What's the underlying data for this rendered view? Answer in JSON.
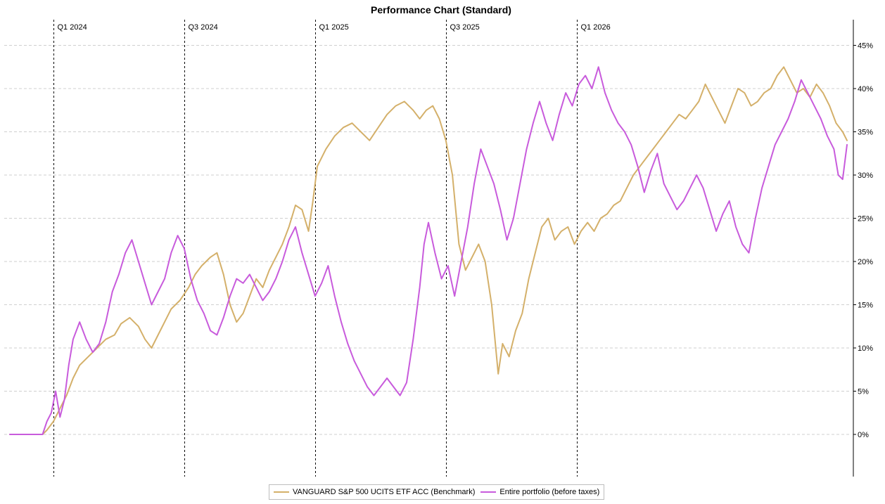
{
  "chart_data": {
    "type": "line",
    "title": "Performance Chart (Standard)",
    "xlabel": "",
    "ylabel": "",
    "x_range": [
      "2023-11",
      "2026-03"
    ],
    "ylim": [
      -5,
      48
    ],
    "y_ticks": [
      0,
      5,
      10,
      15,
      20,
      25,
      30,
      35,
      40,
      45
    ],
    "y_tick_labels": [
      "0%",
      "5%",
      "10%",
      "15%",
      "20%",
      "25%",
      "30%",
      "35%",
      "40%",
      "45%"
    ],
    "y_axis_position": "right",
    "grid": true,
    "quarter_markers": [
      {
        "label": "Q1 2024",
        "x": 2.0
      },
      {
        "label": "Q3 2024",
        "x": 8.0
      },
      {
        "label": "Q1 2025",
        "x": 14.0
      },
      {
        "label": "Q3 2025",
        "x": 20.0
      },
      {
        "label": "Q1 2026",
        "x": 26.0
      }
    ],
    "legend_position": "bottom-center",
    "series": [
      {
        "name": "VANGUARD S&P 500 UCITS ETF ACC (Benchmark)",
        "color": "#d4b06a",
        "points": [
          [
            0.0,
            0.0
          ],
          [
            1.5,
            0.0
          ],
          [
            1.7,
            0.5
          ],
          [
            2.0,
            1.5
          ],
          [
            2.3,
            3.0
          ],
          [
            2.6,
            4.5
          ],
          [
            2.9,
            6.5
          ],
          [
            3.2,
            8.0
          ],
          [
            3.6,
            9.0
          ],
          [
            4.0,
            10.0
          ],
          [
            4.4,
            11.0
          ],
          [
            4.8,
            11.5
          ],
          [
            5.1,
            12.8
          ],
          [
            5.5,
            13.5
          ],
          [
            5.9,
            12.5
          ],
          [
            6.2,
            11.0
          ],
          [
            6.5,
            10.0
          ],
          [
            6.8,
            11.5
          ],
          [
            7.1,
            13.0
          ],
          [
            7.4,
            14.5
          ],
          [
            7.8,
            15.5
          ],
          [
            8.2,
            17.0
          ],
          [
            8.5,
            18.5
          ],
          [
            8.8,
            19.5
          ],
          [
            9.2,
            20.5
          ],
          [
            9.5,
            21.0
          ],
          [
            9.8,
            18.5
          ],
          [
            10.1,
            15.0
          ],
          [
            10.4,
            13.0
          ],
          [
            10.7,
            14.0
          ],
          [
            11.0,
            16.0
          ],
          [
            11.3,
            18.0
          ],
          [
            11.6,
            17.0
          ],
          [
            11.9,
            19.0
          ],
          [
            12.2,
            20.5
          ],
          [
            12.5,
            22.0
          ],
          [
            12.8,
            24.0
          ],
          [
            13.1,
            26.5
          ],
          [
            13.4,
            26.0
          ],
          [
            13.7,
            23.5
          ],
          [
            13.9,
            27.0
          ],
          [
            14.1,
            31.0
          ],
          [
            14.5,
            33.0
          ],
          [
            14.9,
            34.5
          ],
          [
            15.3,
            35.5
          ],
          [
            15.7,
            36.0
          ],
          [
            16.1,
            35.0
          ],
          [
            16.5,
            34.0
          ],
          [
            16.9,
            35.5
          ],
          [
            17.3,
            37.0
          ],
          [
            17.7,
            38.0
          ],
          [
            18.1,
            38.5
          ],
          [
            18.5,
            37.5
          ],
          [
            18.8,
            36.5
          ],
          [
            19.1,
            37.5
          ],
          [
            19.4,
            38.0
          ],
          [
            19.7,
            36.5
          ],
          [
            20.0,
            34.0
          ],
          [
            20.3,
            30.0
          ],
          [
            20.6,
            22.0
          ],
          [
            20.9,
            19.0
          ],
          [
            21.2,
            20.5
          ],
          [
            21.5,
            22.0
          ],
          [
            21.8,
            20.0
          ],
          [
            22.1,
            15.0
          ],
          [
            22.4,
            7.0
          ],
          [
            22.6,
            10.5
          ],
          [
            22.9,
            9.0
          ],
          [
            23.2,
            12.0
          ],
          [
            23.5,
            14.0
          ],
          [
            23.8,
            18.0
          ],
          [
            24.1,
            21.0
          ],
          [
            24.4,
            24.0
          ],
          [
            24.7,
            25.0
          ],
          [
            25.0,
            22.5
          ],
          [
            25.3,
            23.5
          ],
          [
            25.6,
            24.0
          ],
          [
            25.9,
            22.0
          ],
          [
            26.2,
            23.5
          ],
          [
            26.5,
            24.5
          ],
          [
            26.8,
            23.5
          ],
          [
            27.1,
            25.0
          ],
          [
            27.4,
            25.5
          ],
          [
            27.7,
            26.5
          ],
          [
            28.0,
            27.0
          ],
          [
            28.3,
            28.5
          ],
          [
            28.6,
            30.0
          ],
          [
            28.9,
            31.0
          ],
          [
            29.2,
            32.0
          ],
          [
            29.5,
            33.0
          ],
          [
            29.8,
            34.0
          ],
          [
            30.1,
            35.0
          ],
          [
            30.4,
            36.0
          ],
          [
            30.7,
            37.0
          ],
          [
            31.0,
            36.5
          ],
          [
            31.3,
            37.5
          ],
          [
            31.6,
            38.5
          ],
          [
            31.9,
            40.5
          ],
          [
            32.2,
            39.0
          ],
          [
            32.5,
            37.5
          ],
          [
            32.8,
            36.0
          ],
          [
            33.1,
            38.0
          ],
          [
            33.4,
            40.0
          ],
          [
            33.7,
            39.5
          ],
          [
            34.0,
            38.0
          ],
          [
            34.3,
            38.5
          ],
          [
            34.6,
            39.5
          ],
          [
            34.9,
            40.0
          ],
          [
            35.2,
            41.5
          ],
          [
            35.5,
            42.5
          ],
          [
            35.8,
            41.0
          ],
          [
            36.1,
            39.5
          ],
          [
            36.4,
            40.0
          ],
          [
            36.7,
            39.0
          ],
          [
            37.0,
            40.5
          ],
          [
            37.3,
            39.5
          ],
          [
            37.6,
            38.0
          ],
          [
            37.9,
            36.0
          ],
          [
            38.2,
            35.0
          ],
          [
            38.4,
            34.0
          ]
        ]
      },
      {
        "name": "Entire portfolio (before taxes)",
        "color": "#c85bdc",
        "points": [
          [
            0.0,
            0.0
          ],
          [
            1.5,
            0.0
          ],
          [
            1.7,
            1.5
          ],
          [
            1.9,
            2.5
          ],
          [
            2.1,
            5.0
          ],
          [
            2.3,
            2.0
          ],
          [
            2.5,
            4.0
          ],
          [
            2.7,
            8.0
          ],
          [
            2.9,
            11.0
          ],
          [
            3.2,
            13.0
          ],
          [
            3.5,
            11.0
          ],
          [
            3.8,
            9.5
          ],
          [
            4.1,
            10.5
          ],
          [
            4.4,
            13.0
          ],
          [
            4.7,
            16.5
          ],
          [
            5.0,
            18.5
          ],
          [
            5.3,
            21.0
          ],
          [
            5.6,
            22.5
          ],
          [
            5.9,
            20.0
          ],
          [
            6.2,
            17.5
          ],
          [
            6.5,
            15.0
          ],
          [
            6.8,
            16.5
          ],
          [
            7.1,
            18.0
          ],
          [
            7.4,
            21.0
          ],
          [
            7.7,
            23.0
          ],
          [
            8.0,
            21.5
          ],
          [
            8.3,
            18.0
          ],
          [
            8.6,
            15.5
          ],
          [
            8.9,
            14.0
          ],
          [
            9.2,
            12.0
          ],
          [
            9.5,
            11.5
          ],
          [
            9.8,
            13.5
          ],
          [
            10.1,
            16.0
          ],
          [
            10.4,
            18.0
          ],
          [
            10.7,
            17.5
          ],
          [
            11.0,
            18.5
          ],
          [
            11.3,
            17.0
          ],
          [
            11.6,
            15.5
          ],
          [
            11.9,
            16.5
          ],
          [
            12.2,
            18.0
          ],
          [
            12.5,
            20.0
          ],
          [
            12.8,
            22.5
          ],
          [
            13.1,
            24.0
          ],
          [
            13.4,
            21.0
          ],
          [
            13.7,
            18.5
          ],
          [
            14.0,
            16.0
          ],
          [
            14.3,
            17.5
          ],
          [
            14.6,
            19.5
          ],
          [
            14.9,
            16.0
          ],
          [
            15.2,
            13.0
          ],
          [
            15.5,
            10.5
          ],
          [
            15.8,
            8.5
          ],
          [
            16.1,
            7.0
          ],
          [
            16.4,
            5.5
          ],
          [
            16.7,
            4.5
          ],
          [
            17.0,
            5.5
          ],
          [
            17.3,
            6.5
          ],
          [
            17.6,
            5.5
          ],
          [
            17.9,
            4.5
          ],
          [
            18.2,
            6.0
          ],
          [
            18.5,
            11.0
          ],
          [
            18.8,
            17.0
          ],
          [
            19.0,
            22.0
          ],
          [
            19.2,
            24.5
          ],
          [
            19.5,
            21.0
          ],
          [
            19.8,
            18.0
          ],
          [
            20.1,
            19.5
          ],
          [
            20.4,
            16.0
          ],
          [
            20.7,
            20.0
          ],
          [
            21.0,
            24.0
          ],
          [
            21.3,
            29.0
          ],
          [
            21.6,
            33.0
          ],
          [
            21.9,
            31.0
          ],
          [
            22.2,
            29.0
          ],
          [
            22.5,
            26.0
          ],
          [
            22.8,
            22.5
          ],
          [
            23.1,
            25.0
          ],
          [
            23.4,
            29.0
          ],
          [
            23.7,
            33.0
          ],
          [
            24.0,
            36.0
          ],
          [
            24.3,
            38.5
          ],
          [
            24.6,
            36.0
          ],
          [
            24.9,
            34.0
          ],
          [
            25.2,
            37.0
          ],
          [
            25.5,
            39.5
          ],
          [
            25.8,
            38.0
          ],
          [
            26.1,
            40.5
          ],
          [
            26.4,
            41.5
          ],
          [
            26.7,
            40.0
          ],
          [
            27.0,
            42.5
          ],
          [
            27.3,
            39.5
          ],
          [
            27.6,
            37.5
          ],
          [
            27.9,
            36.0
          ],
          [
            28.2,
            35.0
          ],
          [
            28.5,
            33.5
          ],
          [
            28.8,
            31.0
          ],
          [
            29.1,
            28.0
          ],
          [
            29.4,
            30.5
          ],
          [
            29.7,
            32.5
          ],
          [
            30.0,
            29.0
          ],
          [
            30.3,
            27.5
          ],
          [
            30.6,
            26.0
          ],
          [
            30.9,
            27.0
          ],
          [
            31.2,
            28.5
          ],
          [
            31.5,
            30.0
          ],
          [
            31.8,
            28.5
          ],
          [
            32.1,
            26.0
          ],
          [
            32.4,
            23.5
          ],
          [
            32.7,
            25.5
          ],
          [
            33.0,
            27.0
          ],
          [
            33.3,
            24.0
          ],
          [
            33.6,
            22.0
          ],
          [
            33.9,
            21.0
          ],
          [
            34.2,
            25.0
          ],
          [
            34.5,
            28.5
          ],
          [
            34.8,
            31.0
          ],
          [
            35.1,
            33.5
          ],
          [
            35.4,
            35.0
          ],
          [
            35.7,
            36.5
          ],
          [
            36.0,
            38.5
          ],
          [
            36.3,
            41.0
          ],
          [
            36.6,
            39.5
          ],
          [
            36.9,
            38.0
          ],
          [
            37.2,
            36.5
          ],
          [
            37.5,
            34.5
          ],
          [
            37.8,
            33.0
          ],
          [
            38.0,
            30.0
          ],
          [
            38.2,
            29.5
          ],
          [
            38.4,
            33.5
          ]
        ]
      }
    ]
  }
}
